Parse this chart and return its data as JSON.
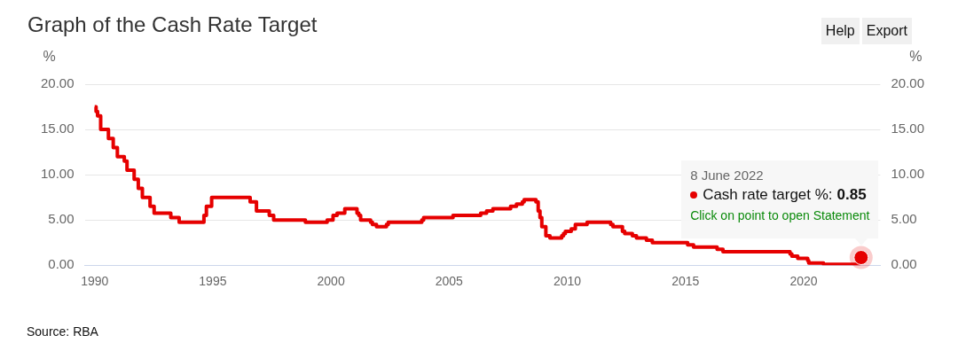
{
  "chart_data": {
    "type": "step",
    "title": "Graph of the Cash Rate Target",
    "ylabel": "%",
    "y2label": "%",
    "x": [
      "1990-01-02",
      "1990-01-23",
      "1990-02-15",
      "1990-04-04",
      "1990-08-02",
      "1990-10-15",
      "1990-12-18",
      "1991-04-04",
      "1991-05-16",
      "1991-09-03",
      "1991-11-06",
      "1992-01-08",
      "1992-05-06",
      "1992-07-08",
      "1993-03-23",
      "1993-07-30",
      "1994-08-17",
      "1994-09-24",
      "1994-12-14",
      "1996-07-31",
      "1996-11-06",
      "1997-05-23",
      "1997-07-30",
      "1998-12-02",
      "1999-11-03",
      "2000-02-02",
      "2000-04-05",
      "2000-08-02",
      "2001-02-07",
      "2001-03-07",
      "2001-04-04",
      "2001-09-05",
      "2001-10-03",
      "2001-12-05",
      "2002-05-08",
      "2002-06-05",
      "2003-11-05",
      "2003-12-03",
      "2005-03-02",
      "2006-05-03",
      "2006-08-02",
      "2006-11-08",
      "2007-08-08",
      "2007-11-07",
      "2008-02-06",
      "2008-03-05",
      "2008-09-03",
      "2008-10-08",
      "2008-11-05",
      "2008-12-03",
      "2009-02-04",
      "2009-04-08",
      "2009-10-07",
      "2009-11-04",
      "2009-12-02",
      "2010-03-03",
      "2010-05-05",
      "2010-11-03",
      "2011-11-02",
      "2011-12-07",
      "2012-05-02",
      "2012-06-06",
      "2012-10-03",
      "2012-12-05",
      "2013-05-08",
      "2013-08-07",
      "2015-02-04",
      "2015-05-06",
      "2016-05-04",
      "2016-08-03",
      "2019-06-05",
      "2019-07-03",
      "2019-10-02",
      "2020-03-04",
      "2020-03-20",
      "2020-11-04",
      "2022-05-04",
      "2022-06-08"
    ],
    "series": [
      {
        "name": "Cash rate target %:",
        "color": "#e60000",
        "value_labels": [
          null,
          null,
          null,
          null,
          null,
          null,
          null,
          null,
          null,
          null,
          null,
          null,
          null,
          null,
          null,
          null,
          null,
          null,
          null,
          null,
          null,
          null,
          null,
          null,
          null,
          null,
          null,
          null,
          null,
          null,
          null,
          null,
          null,
          null,
          null,
          null,
          null,
          null,
          null,
          null,
          null,
          null,
          null,
          null,
          null,
          null,
          null,
          null,
          null,
          null,
          null,
          null,
          null,
          null,
          null,
          null,
          null,
          null,
          null,
          null,
          null,
          null,
          null,
          null,
          null,
          null,
          null,
          null,
          null,
          null,
          null,
          null,
          null,
          null,
          null,
          null,
          null,
          "0.85"
        ],
        "values": [
          17.5,
          17,
          16.5,
          15,
          14,
          13,
          12,
          11.5,
          10.5,
          9.5,
          8.5,
          7.5,
          6.5,
          5.75,
          5.25,
          4.75,
          5.5,
          6.5,
          7.5,
          7,
          6,
          5.5,
          5,
          4.75,
          5,
          5.5,
          5.75,
          6.25,
          5.75,
          5.5,
          5,
          4.75,
          4.5,
          4.25,
          4.5,
          4.75,
          5,
          5.25,
          5.5,
          5.75,
          6,
          6.25,
          6.5,
          6.75,
          7,
          7.25,
          7,
          6,
          5.25,
          4.25,
          3.25,
          3,
          3.25,
          3.5,
          3.75,
          4,
          4.5,
          4.75,
          4.5,
          4.25,
          3.75,
          3.5,
          3.25,
          3,
          2.75,
          2.5,
          2.25,
          2,
          1.75,
          1.5,
          1.25,
          1,
          0.75,
          0.5,
          0.25,
          0.1,
          0.35,
          0.85
        ]
      }
    ],
    "xlim": [
      "1989-08",
      "2023-04"
    ],
    "xticks": [
      "1990",
      "1995",
      "2000",
      "2005",
      "2010",
      "2015",
      "2020"
    ],
    "ylim": [
      0,
      20
    ],
    "yticks": [
      {
        "value": 0,
        "label": "0.00"
      },
      {
        "value": 5,
        "label": "5.00"
      },
      {
        "value": 10,
        "label": "10.00"
      },
      {
        "value": 15,
        "label": "15.00"
      },
      {
        "value": 20,
        "label": "20.00"
      }
    ],
    "y2lim": [
      0,
      20
    ],
    "y2ticks": [
      {
        "value": 0,
        "label": "0.00"
      },
      {
        "value": 5,
        "label": "5.00"
      },
      {
        "value": 10,
        "label": "10.00"
      },
      {
        "value": 15,
        "label": "15.00"
      },
      {
        "value": 20,
        "label": "20.00"
      }
    ],
    "grid": "y",
    "legend": "right",
    "marker": "none",
    "line_style": "solid",
    "annotations": [
      "8 June 2022",
      "Click on point to open Statement",
      "Source: RBA",
      "Help",
      "Export"
    ]
  }
}
